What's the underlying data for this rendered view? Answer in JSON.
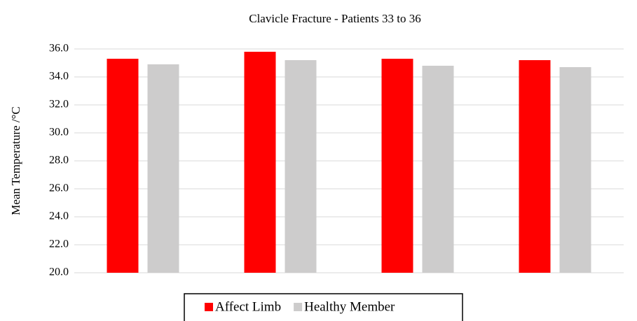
{
  "chart_data": {
    "type": "bar",
    "title": "Clavicle Fracture - Patients 33 to 36",
    "y_label": "Mean Temperature /°C",
    "categories": [
      null,
      null,
      null,
      null
    ],
    "series": [
      {
        "name": "Affect Limb",
        "color": "#ff0000",
        "values": [
          35.3,
          35.8,
          35.3,
          35.2
        ]
      },
      {
        "name": "Healthy Member",
        "color": "#cdcccc",
        "values": [
          34.9,
          35.2,
          34.8,
          34.7
        ]
      }
    ],
    "ylim": [
      20,
      36
    ],
    "yticks": [
      {
        "value": 20,
        "label": "20.0"
      },
      {
        "value": 22,
        "label": "22.0"
      },
      {
        "value": 24,
        "label": "24.0"
      },
      {
        "value": 26,
        "label": "26.0"
      },
      {
        "value": 28,
        "label": "28.0"
      },
      {
        "value": 30,
        "label": "30.0"
      },
      {
        "value": 32,
        "label": "32.0"
      },
      {
        "value": 34,
        "label": "34.0"
      },
      {
        "value": 36,
        "label": "36.0"
      }
    ],
    "grid": true,
    "legend": "bottom"
  }
}
